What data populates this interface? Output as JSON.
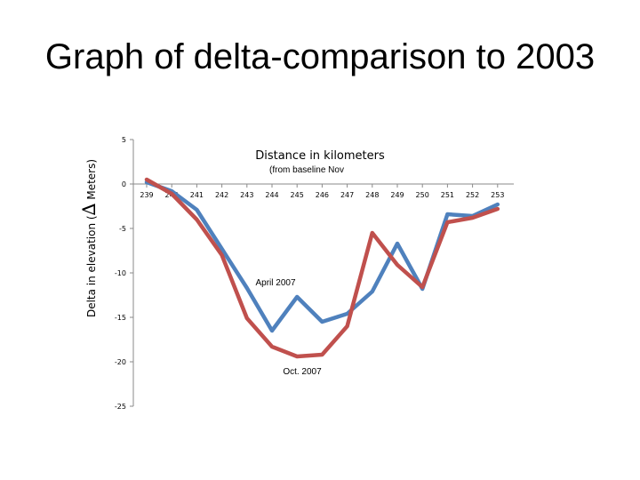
{
  "slide": {
    "title": "Graph of delta-comparison to 2003"
  },
  "colors": {
    "april_series": "#4F81BD",
    "oct_series": "#C0504D",
    "axis": "#8A8A8A"
  },
  "chart_data": {
    "type": "line",
    "title": "Distance in kilometers",
    "subtitle": "(from baseline Nov",
    "ylabel_prefix": "Delta in elevation (",
    "ylabel_symbol": "∆",
    "ylabel_suffix": " Meters)",
    "x": [
      239,
      240,
      241,
      242,
      243,
      244,
      245,
      246,
      247,
      248,
      249,
      250,
      251,
      252,
      253
    ],
    "x_tick_labels": [
      "239",
      "240",
      "241",
      "242",
      "243",
      "244",
      "245",
      "246",
      "247",
      "248",
      "249",
      "250",
      "251",
      "252",
      "253"
    ],
    "y_ticks": [
      5,
      0,
      -5,
      -10,
      -15,
      -20,
      -25
    ],
    "y_tick_labels": [
      "5",
      "0",
      "-5",
      "-10",
      "-15",
      "-20",
      "-25"
    ],
    "ylim": [
      -25,
      5
    ],
    "grid": false,
    "annotations": [
      "April 2007",
      "Oct. 2007"
    ],
    "series": [
      {
        "values": [
          0.2,
          -0.8,
          -2.9,
          -7.3,
          -11.7,
          -16.5,
          -12.7,
          -15.5,
          -14.6,
          -12.1,
          -6.7,
          -11.8,
          -3.4,
          -3.6,
          -2.3
        ]
      },
      {
        "values": [
          0.5,
          -1.1,
          -4.0,
          -8.0,
          -15.1,
          -18.3,
          -19.4,
          -19.2,
          -16.0,
          -5.5,
          -9.1,
          -11.6,
          -4.3,
          -3.8,
          -2.8
        ]
      }
    ]
  }
}
